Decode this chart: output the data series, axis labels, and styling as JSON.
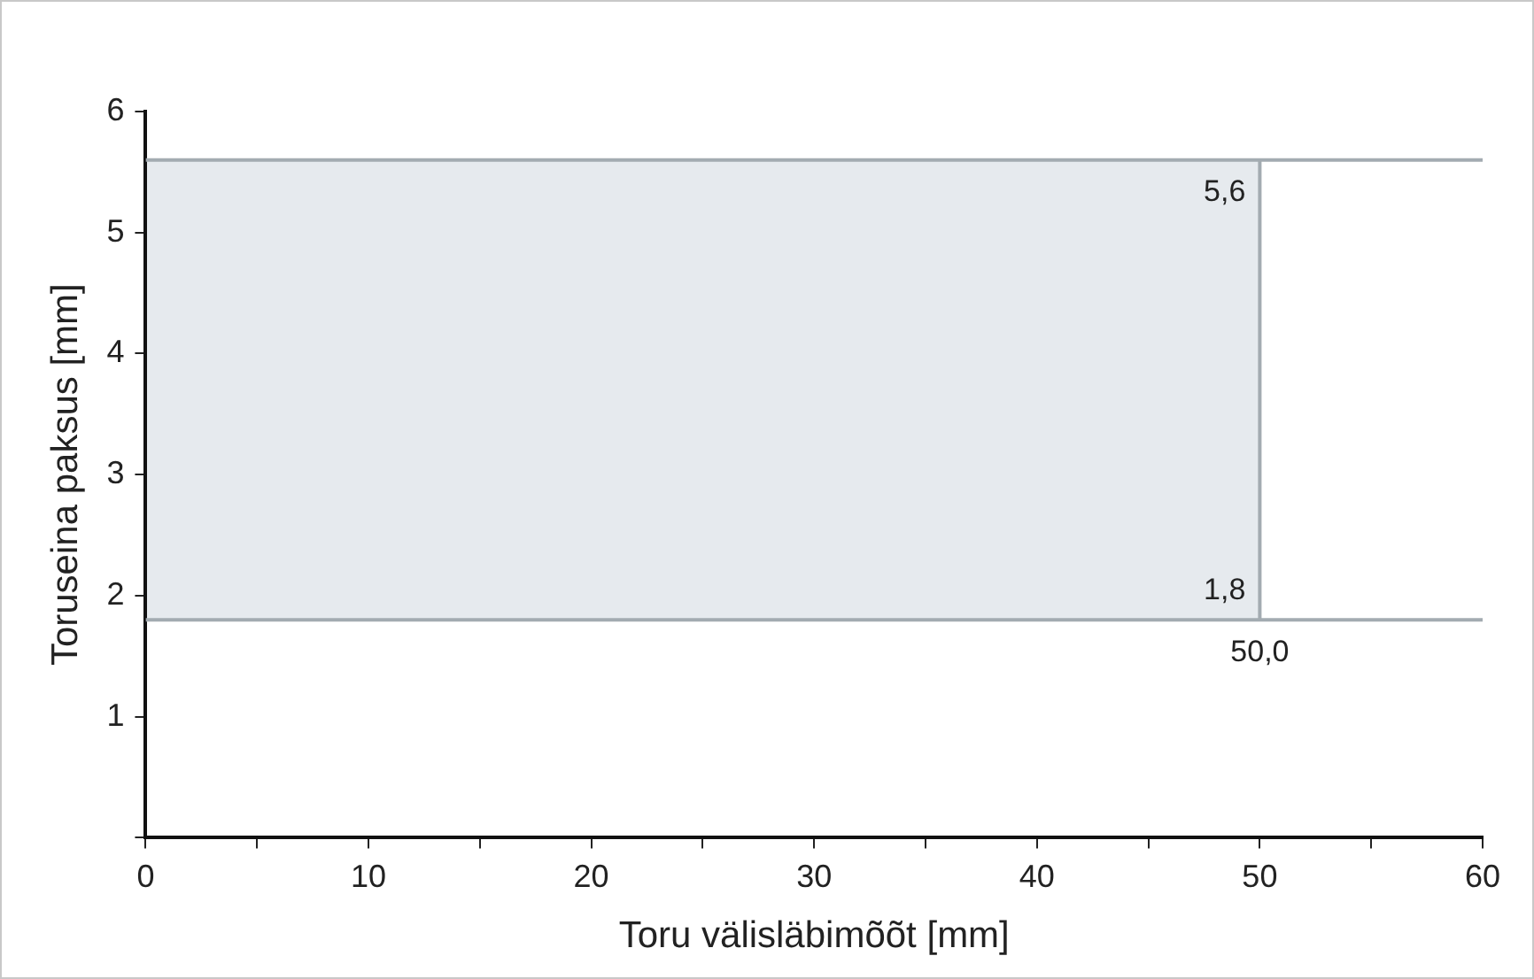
{
  "chart_data": {
    "type": "line",
    "xlabel": "Toru välisläbimõõt [mm]",
    "ylabel": "Toruseina paksus [mm]",
    "series": [
      {
        "type": "line",
        "color": "#a3abb1",
        "x": [
          0,
          60
        ],
        "values": [
          5.6,
          5.6
        ]
      },
      {
        "type": "line",
        "color": "#a3abb1",
        "x": [
          0,
          60
        ],
        "values": [
          1.8,
          1.8
        ]
      },
      {
        "type": "line",
        "color": "#a3abb1",
        "x": [
          50,
          50
        ],
        "values": [
          1.8,
          5.6
        ],
        "value_labels": [
          "1,8",
          "5,6"
        ]
      }
    ],
    "annotations": [
      {
        "text": "50,0",
        "x": 50,
        "y": 1.8
      }
    ],
    "xlim": [
      0,
      60
    ],
    "xticks": [
      0,
      {
        "value": 5,
        "label": null
      },
      10,
      {
        "value": 15,
        "label": null
      },
      20,
      {
        "value": 25,
        "label": null
      },
      30,
      {
        "value": 35,
        "label": null
      },
      40,
      {
        "value": 45,
        "label": null
      },
      50,
      {
        "value": 55,
        "label": null
      },
      60
    ],
    "ylim": [
      0,
      6
    ],
    "yticks": [
      {
        "value": 0,
        "label": null
      },
      1,
      2,
      3,
      4,
      5,
      6
    ],
    "grid": false,
    "legend": false,
    "marker": "none",
    "line_style": "solid"
  }
}
